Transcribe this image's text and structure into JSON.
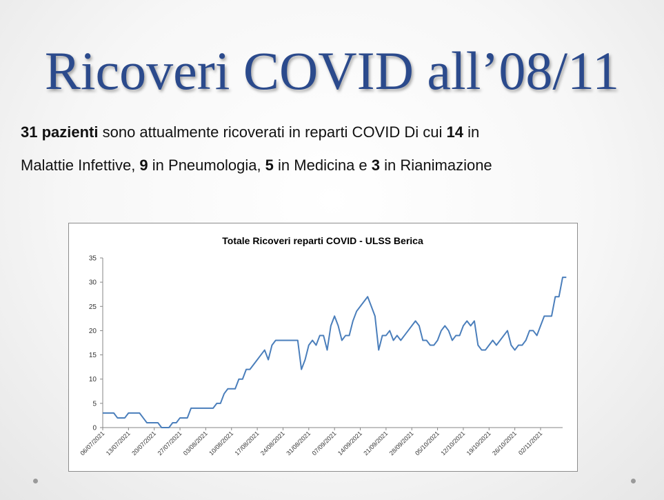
{
  "slide": {
    "title": "Ricoveri COVID all’08/11",
    "text": {
      "line1_bold": "31 pazienti",
      "line1_rest": " sono attualmente ricoverati in reparti COVID Di cui ",
      "line1_n14": "14",
      "line1_end": " in",
      "line2_start": "Malattie Infettive, ",
      "line2_n9": "9",
      "line2_mid1": " in Pneumologia, ",
      "line2_n5": "5",
      "line2_mid2": " in Medicina e ",
      "line2_n3": "3",
      "line2_end": " in Rianimazione"
    }
  },
  "chart_data": {
    "type": "line",
    "title": "Totale Ricoveri reparti COVID - ULSS Berica",
    "xlabel": "",
    "ylabel": "",
    "ylim": [
      0,
      35
    ],
    "yticks": [
      0,
      5,
      10,
      15,
      20,
      25,
      30,
      35
    ],
    "xtick_labels": [
      "06/07/2021",
      "13/07/2021",
      "20/07/2021",
      "27/07/2021",
      "03/08/2021",
      "10/08/2021",
      "17/08/2021",
      "24/08/2021",
      "31/08/2021",
      "07/09/2021",
      "14/09/2021",
      "21/09/2021",
      "28/09/2021",
      "05/10/2021",
      "12/10/2021",
      "19/10/2021",
      "26/10/2021",
      "02/11/2021"
    ],
    "x_start": "2021-07-06",
    "x_end": "2021-11-08",
    "grid": false,
    "legend": "none",
    "line_color": "#4a7ebb",
    "series": [
      {
        "values": [
          3,
          3,
          3,
          3,
          2,
          2,
          2,
          3,
          3,
          3,
          3,
          2,
          1,
          1,
          1,
          1,
          0,
          0,
          0,
          1,
          1,
          2,
          2,
          2,
          4,
          4,
          4,
          4,
          4,
          4,
          4,
          5,
          5,
          7,
          8,
          8,
          8,
          10,
          10,
          12,
          12,
          13,
          14,
          15,
          16,
          14,
          17,
          18,
          18,
          18,
          18,
          18,
          18,
          18,
          12,
          14,
          17,
          18,
          17,
          19,
          19,
          16,
          21,
          23,
          21,
          18,
          19,
          19,
          22,
          24,
          25,
          26,
          27,
          25,
          23,
          16,
          19,
          19,
          20,
          18,
          19,
          18,
          19,
          20,
          21,
          22,
          21,
          18,
          18,
          17,
          17,
          18,
          20,
          21,
          20,
          18,
          19,
          19,
          21,
          22,
          21,
          22,
          17,
          16,
          16,
          17,
          18,
          17,
          18,
          19,
          20,
          17,
          16,
          17,
          17,
          18,
          20,
          20,
          19,
          21,
          23,
          23,
          23,
          27,
          27,
          31,
          31
        ]
      }
    ]
  }
}
